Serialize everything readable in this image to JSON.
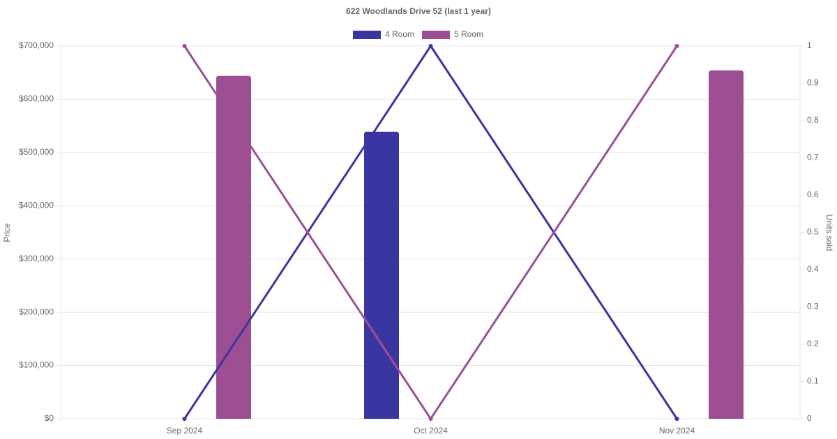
{
  "chart_data": {
    "type": "bar-line",
    "title": "622 Woodlands Drive 52 (last 1 year)",
    "y_label": "Price",
    "y2_label": "Units sold",
    "categories": [
      "Sep 2024",
      "Oct 2024",
      "Nov 2024"
    ],
    "series": [
      {
        "name": "4 Room",
        "color": "#3a35a0",
        "values": [
          null,
          539000,
          null
        ],
        "units": [
          0,
          1,
          0
        ]
      },
      {
        "name": "5 Room",
        "color": "#9e4f94",
        "values": [
          644000,
          null,
          654000
        ],
        "units": [
          1,
          0,
          1
        ]
      }
    ],
    "ylim": [
      0,
      700000
    ],
    "yticks": [
      {
        "value": 0,
        "label": "$0"
      },
      {
        "value": 100000,
        "label": "$100,000"
      },
      {
        "value": 200000,
        "label": "$200,000"
      },
      {
        "value": 300000,
        "label": "$300,000"
      },
      {
        "value": 400000,
        "label": "$400,000"
      },
      {
        "value": 500000,
        "label": "$500,000"
      },
      {
        "value": 600000,
        "label": "$600,000"
      },
      {
        "value": 700000,
        "label": "$700,000"
      }
    ],
    "y2lim": [
      0,
      1
    ],
    "y2ticks": [
      0,
      0.1,
      0.2,
      0.3,
      0.4,
      0.5,
      0.6,
      0.7,
      0.8,
      0.9,
      1
    ],
    "grid": true
  }
}
